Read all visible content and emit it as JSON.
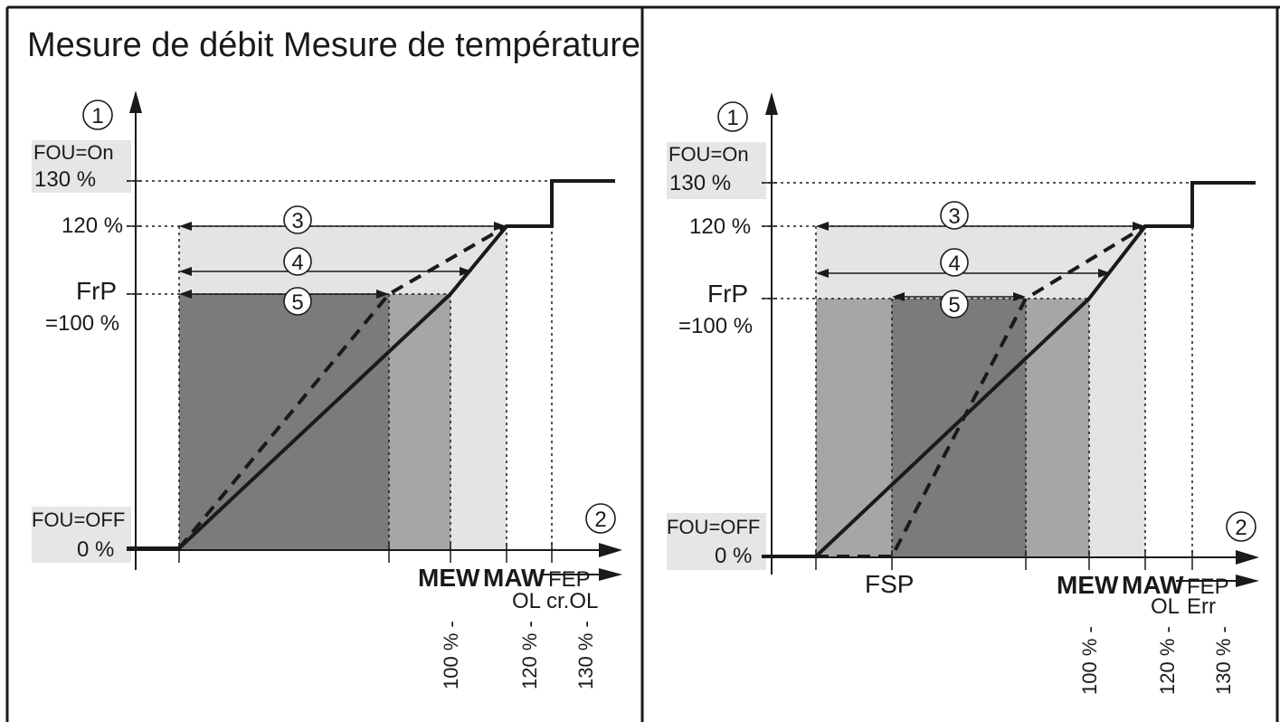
{
  "title": "Mesure de débit Mesure de température",
  "panels": {
    "left": {
      "y_marker": "1",
      "x_marker": "2",
      "fou_on": "FOU=On",
      "y130": "130 %",
      "y120": "120 %",
      "frp": "FrP",
      "frp_val": "=100 %",
      "fou_off": "FOU=OFF",
      "y0": "0 %",
      "arrow3": "3",
      "arrow4": "4",
      "arrow5": "5",
      "x_mew": "MEW",
      "x_maw": "MAW",
      "x_fep": "FEP",
      "x_ol": "OL",
      "x_crol": "cr.OL",
      "x100": "100 % -",
      "x120": "120 % -",
      "x130": "130 % -"
    },
    "right": {
      "y_marker": "1",
      "x_marker": "2",
      "fou_on": "FOU=On",
      "y130": "130 %",
      "y120": "120 %",
      "frp": "FrP",
      "frp_val": "=100 %",
      "fou_off": "FOU=OFF",
      "y0": "0 %",
      "arrow3": "3",
      "arrow4": "4",
      "arrow5": "5",
      "x_fsp": "FSP",
      "x_mew": "MEW",
      "x_maw": "MAW",
      "x_fep": "FEP",
      "x_ol": "OL",
      "x_err": "Err",
      "x100": "100 % -",
      "x120": "120 % -",
      "x130": "130 % -"
    }
  },
  "colors": {
    "dark": "#7b7b7b",
    "mid": "#a6a6a6",
    "light": "#e4e4e4",
    "label_bg": "#e6e6e6",
    "line": "#1a1a1a"
  }
}
